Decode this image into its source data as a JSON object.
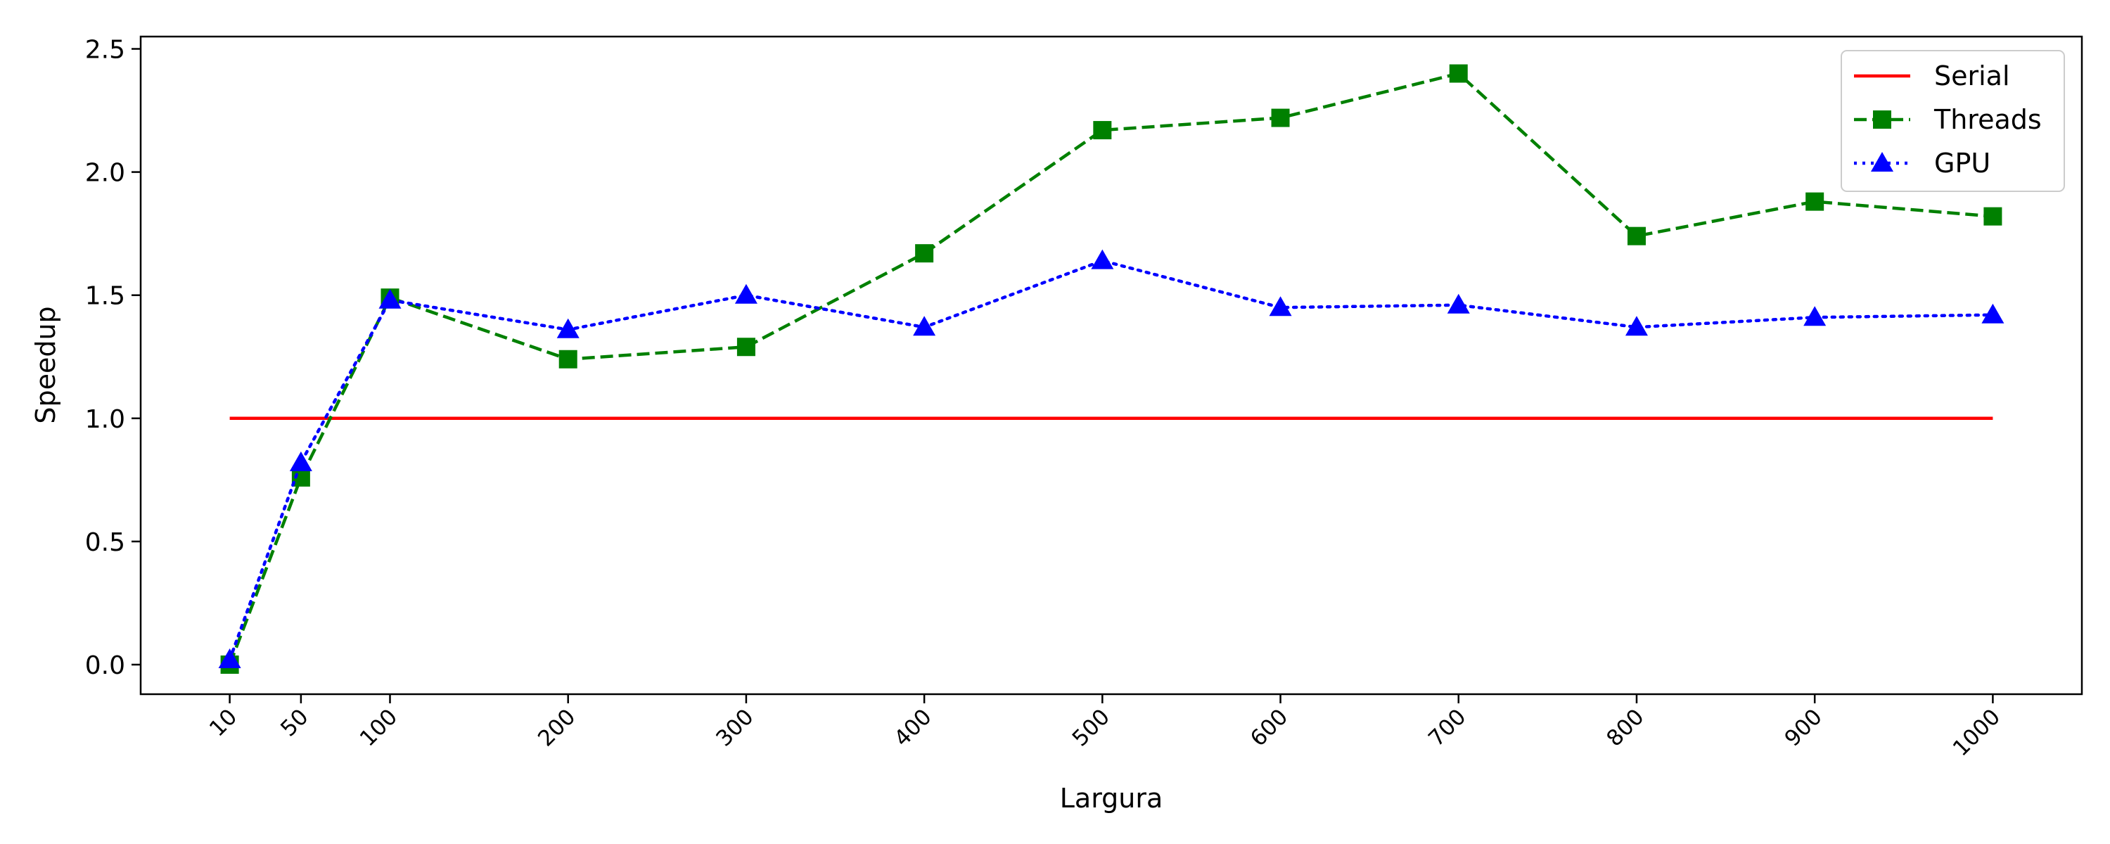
{
  "chart_data": {
    "type": "line",
    "xlabel": "Largura",
    "ylabel": "Speedup",
    "x": [
      10,
      50,
      100,
      200,
      300,
      400,
      500,
      600,
      700,
      800,
      900,
      1000
    ],
    "x_tick_labels": [
      "10",
      "50",
      "100",
      "200",
      "300",
      "400",
      "500",
      "600",
      "700",
      "800",
      "900",
      "1000"
    ],
    "y_ticks": [
      0.0,
      0.5,
      1.0,
      1.5,
      2.0,
      2.5
    ],
    "y_tick_labels": [
      "0.0",
      "0.5",
      "1.0",
      "1.5",
      "2.0",
      "2.5"
    ],
    "xlim": [
      -40,
      1050
    ],
    "ylim": [
      -0.12,
      2.55
    ],
    "grid": false,
    "legend_position": "top-right",
    "series": [
      {
        "name": "Serial",
        "color": "#ff0000",
        "style": "solid",
        "marker": "none",
        "values": [
          1.0,
          1.0,
          1.0,
          1.0,
          1.0,
          1.0,
          1.0,
          1.0,
          1.0,
          1.0,
          1.0,
          1.0
        ]
      },
      {
        "name": "Threads",
        "color": "#008000",
        "style": "dashed",
        "marker": "square",
        "values": [
          0.0,
          0.76,
          1.49,
          1.24,
          1.29,
          1.67,
          2.17,
          2.22,
          2.4,
          1.74,
          1.88,
          1.82
        ]
      },
      {
        "name": "GPU",
        "color": "#0000ff",
        "style": "dotted",
        "marker": "triangle",
        "values": [
          0.02,
          0.82,
          1.48,
          1.36,
          1.5,
          1.37,
          1.64,
          1.45,
          1.46,
          1.37,
          1.41,
          1.42
        ]
      }
    ]
  }
}
